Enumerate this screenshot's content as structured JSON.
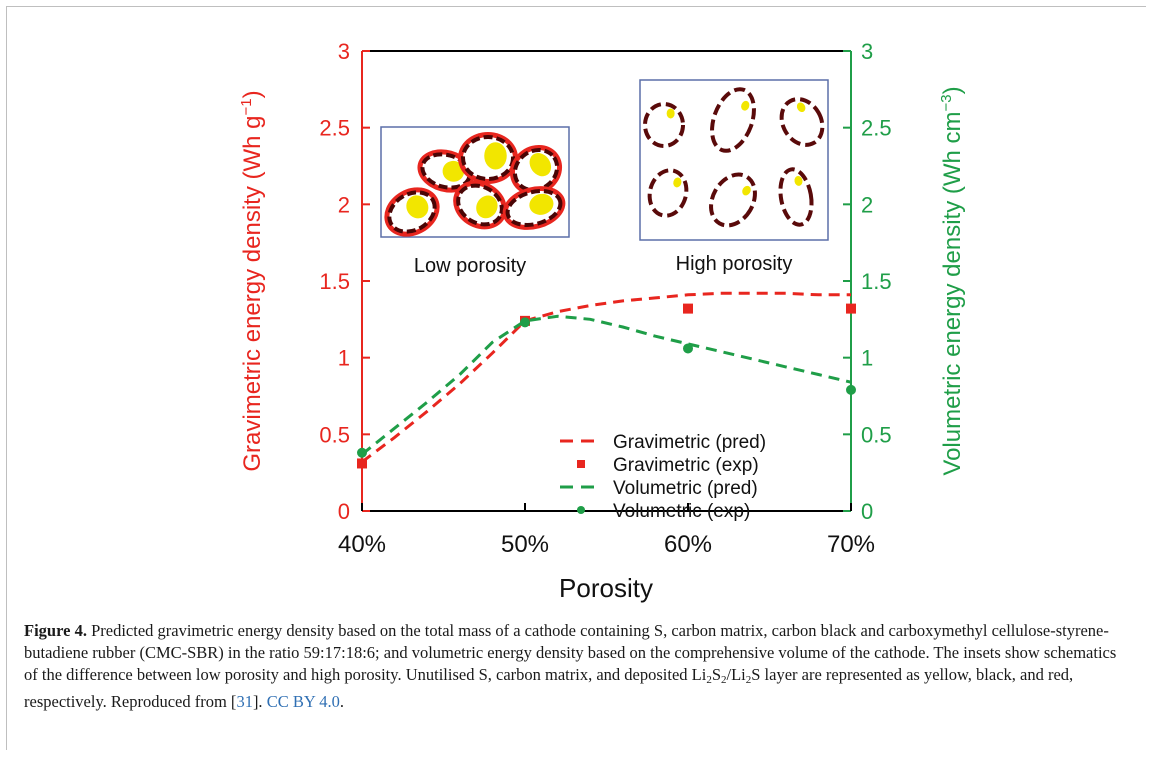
{
  "chart_data": {
    "type": "line",
    "x": [
      "40%",
      "50%",
      "60%",
      "70%"
    ],
    "xlabel": "Porosity",
    "ylabel_left": "Gravimetric energy density (Wh g",
    "ylabel_left_sup": "−1",
    "ylabel_left_end": ")",
    "ylabel_right": "Volumetric energy density (Wh cm",
    "ylabel_right_sup": "−3",
    "ylabel_right_end": ")",
    "ylim_left": [
      0,
      3
    ],
    "ylim_right": [
      0,
      3
    ],
    "yticks_left": [
      "0",
      "0.5",
      "1",
      "1.5",
      "2",
      "2.5",
      "3"
    ],
    "yticks_right": [
      "0",
      "0.5",
      "1",
      "1.5",
      "2",
      "2.5",
      "3"
    ],
    "series": [
      {
        "name": "Gravimetric (pred)",
        "style": "dashed-line",
        "color": "#e8261f",
        "points": [
          [
            40,
            0.32
          ],
          [
            42,
            0.48
          ],
          [
            44,
            0.65
          ],
          [
            46,
            0.83
          ],
          [
            48,
            1.03
          ],
          [
            50,
            1.24
          ],
          [
            52,
            1.3
          ],
          [
            54,
            1.34
          ],
          [
            56,
            1.37
          ],
          [
            58,
            1.39
          ],
          [
            60,
            1.41
          ],
          [
            62,
            1.42
          ],
          [
            64,
            1.42
          ],
          [
            66,
            1.42
          ],
          [
            68,
            1.41
          ],
          [
            70,
            1.41
          ]
        ]
      },
      {
        "name": "Gravimetric (exp)",
        "style": "square-marker",
        "color": "#e8261f",
        "points": [
          [
            40,
            0.31
          ],
          [
            50,
            1.24
          ],
          [
            60,
            1.32
          ],
          [
            70,
            1.32
          ]
        ]
      },
      {
        "name": "Volumetric (pred)",
        "style": "dashed-line",
        "color": "#1f9e48",
        "points": [
          [
            40,
            0.37
          ],
          [
            42,
            0.54
          ],
          [
            44,
            0.71
          ],
          [
            46,
            0.89
          ],
          [
            48,
            1.1
          ],
          [
            50,
            1.24
          ],
          [
            52,
            1.27
          ],
          [
            54,
            1.25
          ],
          [
            56,
            1.2
          ],
          [
            58,
            1.14
          ],
          [
            60,
            1.09
          ],
          [
            62,
            1.04
          ],
          [
            64,
            0.99
          ],
          [
            66,
            0.94
          ],
          [
            68,
            0.89
          ],
          [
            70,
            0.84
          ]
        ]
      },
      {
        "name": "Volumetric (exp)",
        "style": "circle-marker",
        "color": "#1f9e48",
        "points": [
          [
            40,
            0.38
          ],
          [
            50,
            1.23
          ],
          [
            60,
            1.06
          ],
          [
            70,
            0.79
          ]
        ]
      }
    ],
    "insets": [
      {
        "label": "Low porosity"
      },
      {
        "label": "High porosity"
      }
    ]
  },
  "caption": {
    "label": "Figure 4.",
    "text1": " Predicted gravimetric energy density based on the total mass of a cathode containing S, carbon matrix, carbon black and carboxymethyl cellulose-styrene-butadiene rubber (CMC-SBR) in the ratio 59:17:18:6; and volumetric energy density based on the comprehensive volume of the cathode. The insets show schematics of the difference between low porosity and high porosity. Unutilised S, carbon matrix, and deposited Li",
    "sub1": "2",
    "text2": "S",
    "sub2": "2",
    "text3": "/Li",
    "sub3": "2",
    "text4": "S layer are represented as yellow, black, and red, respectively. Reproduced from [",
    "ref": "31",
    "text5": "]. ",
    "license": "CC BY 4.0",
    "text6": "."
  },
  "colors": {
    "gravimetric": "#e8261f",
    "volumetric": "#1f9e48",
    "axis": "#000000",
    "inset_border": "#5b6fa8",
    "carbon": "#5a0a0a",
    "sulfur": "#f2e600",
    "deposit": "#e8261f",
    "link": "#2f6fb3"
  }
}
